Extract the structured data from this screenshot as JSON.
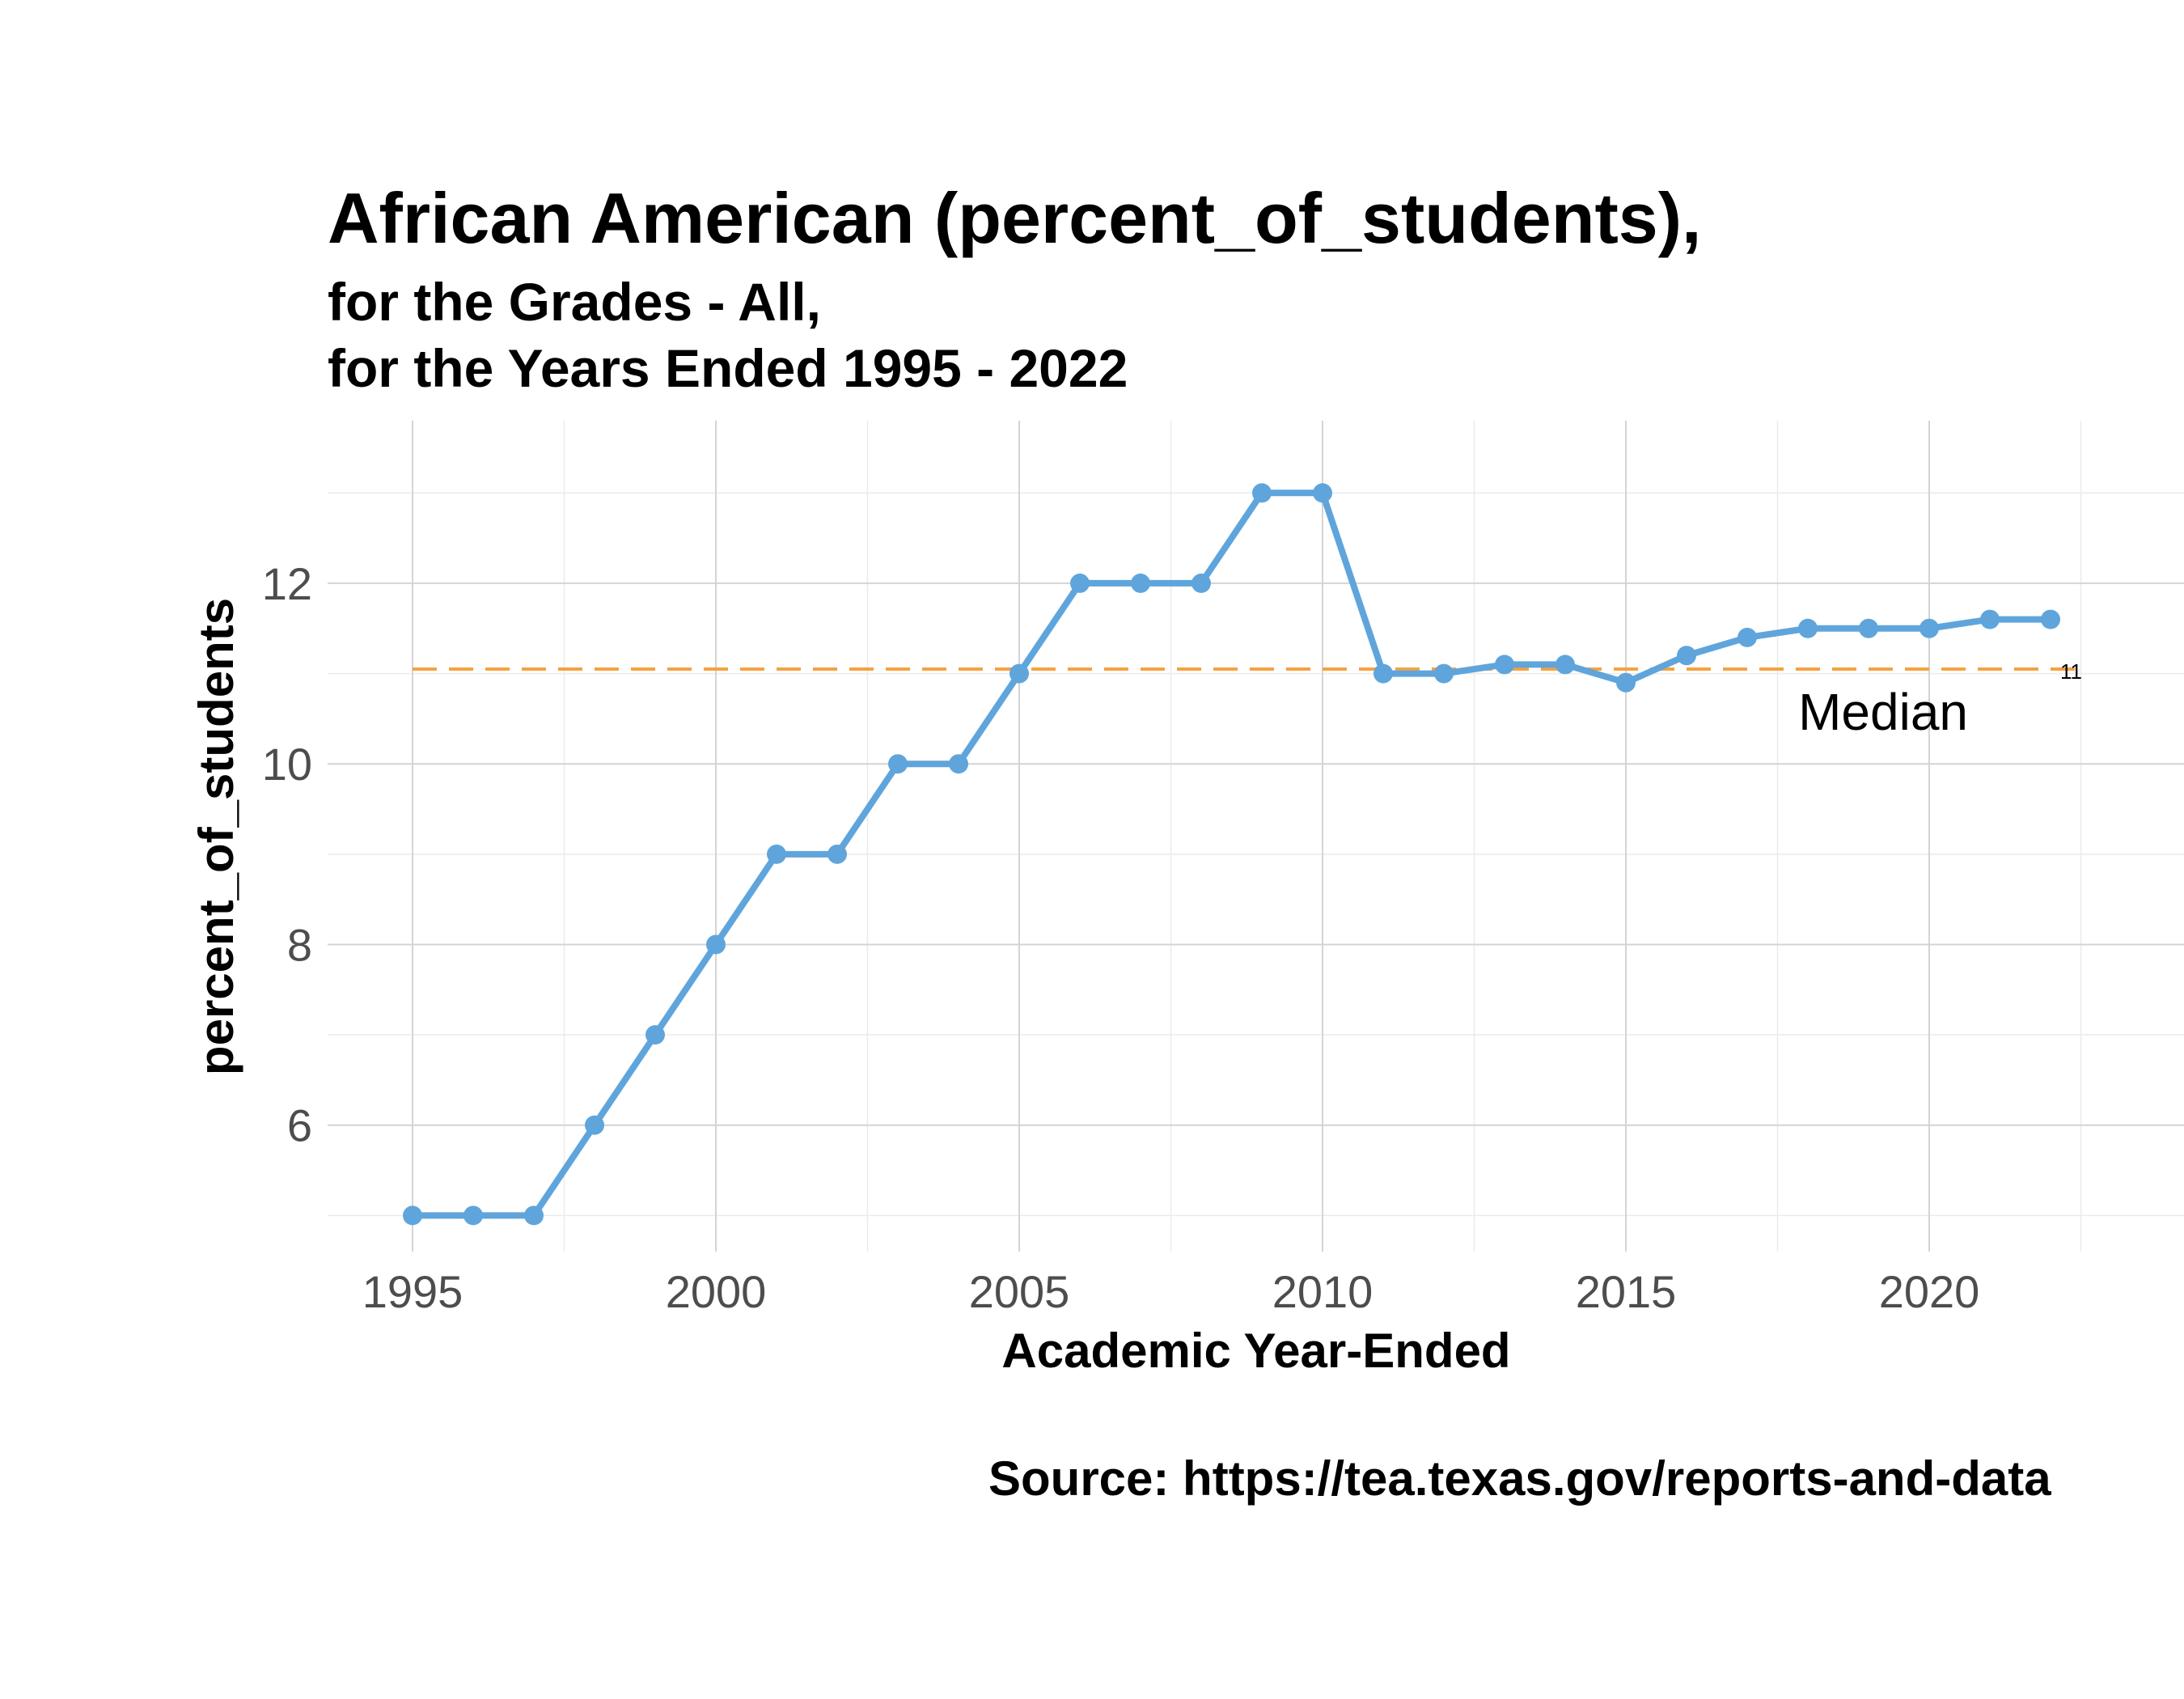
{
  "chart_data": {
    "type": "line",
    "title": "African American (percent_of_students),",
    "subtitle_lines": [
      "for the Grades - All,",
      "for the Years Ended 1995  -  2022"
    ],
    "xlabel": "Academic Year-Ended",
    "ylabel": "percent_of_students",
    "caption": "Source:  https://tea.texas.gov/reports-and-data",
    "x_ticks": [
      1995,
      2000,
      2005,
      2010,
      2015,
      2020
    ],
    "y_ticks": [
      6,
      8,
      10,
      12
    ],
    "xlim": [
      1993.6,
      2024.2
    ],
    "ylim": [
      4.6,
      13.8
    ],
    "grid": true,
    "series": [
      {
        "x": [
          1995,
          1996,
          1997,
          1998,
          1999,
          2000,
          2001,
          2002,
          2003,
          2004,
          2005,
          2006,
          2007,
          2008,
          2009,
          2010,
          2011,
          2012,
          2013,
          2014,
          2015,
          2016,
          2017,
          2018,
          2019,
          2020,
          2021,
          2022
        ],
        "values": [
          5,
          5,
          5,
          6,
          7,
          8,
          9,
          9,
          10,
          10,
          11,
          12,
          12,
          12,
          13,
          13,
          11,
          11,
          11.1,
          11.1,
          10.9,
          11.2,
          11.4,
          11.5,
          11.5,
          11.5,
          11.6,
          11.6
        ],
        "color": "#5fa5dc"
      }
    ],
    "median": {
      "value": 11.05,
      "label": "Median",
      "value_label": "11",
      "color": "#f5a242"
    }
  }
}
